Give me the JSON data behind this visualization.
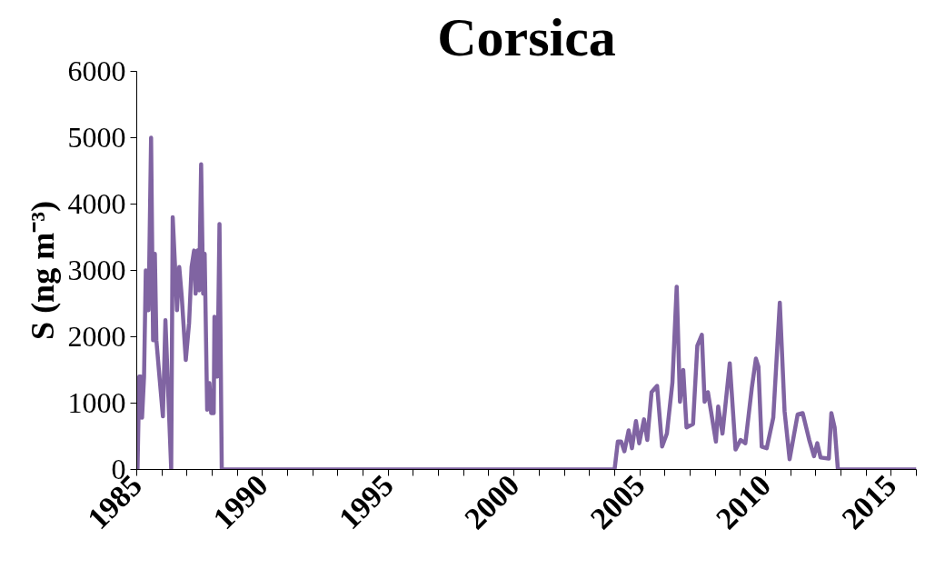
{
  "chart_data": {
    "type": "line",
    "title": "Corsica",
    "ylabel": "S (ng m⁻³)",
    "x": [
      1985.03,
      1985.1,
      1985.16,
      1985.21,
      1985.29,
      1985.36,
      1985.47,
      1985.57,
      1985.65,
      1985.72,
      1985.78,
      1985.88,
      1986.04,
      1986.14,
      1986.37,
      1986.43,
      1986.53,
      1986.6,
      1986.69,
      1986.79,
      1986.95,
      1987.08,
      1987.18,
      1987.28,
      1987.34,
      1987.42,
      1987.48,
      1987.56,
      1987.64,
      1987.7,
      1987.8,
      1987.89,
      1987.96,
      1988.06,
      1988.09,
      1988.21,
      1988.29,
      1988.38,
      2004.0,
      2004.13,
      2004.26,
      2004.39,
      2004.56,
      2004.69,
      2004.85,
      2004.98,
      2005.17,
      2005.3,
      2005.47,
      2005.69,
      2005.89,
      2006.08,
      2006.3,
      2006.47,
      2006.6,
      2006.73,
      2006.86,
      2007.12,
      2007.29,
      2007.47,
      2007.58,
      2007.71,
      2008.03,
      2008.12,
      2008.29,
      2008.58,
      2008.81,
      2009.01,
      2009.2,
      2009.46,
      2009.62,
      2009.72,
      2009.85,
      2010.05,
      2010.31,
      2010.57,
      2010.76,
      2010.96,
      2011.28,
      2011.48,
      2011.74,
      2011.93,
      2012.06,
      2012.19,
      2012.52,
      2012.62,
      2012.75,
      2012.88,
      2016.0
    ],
    "series": [
      {
        "color": "#8064a2",
        "values": [
          0,
          1400,
          1400,
          780,
          1400,
          3000,
          2400,
          5000,
          1950,
          3250,
          1950,
          1500,
          800,
          2250,
          0,
          3800,
          3000,
          2400,
          3050,
          2600,
          1650,
          2200,
          3050,
          3300,
          2650,
          3300,
          2700,
          4600,
          2650,
          3250,
          900,
          1300,
          850,
          850,
          2300,
          1400,
          3700,
          0,
          0,
          420,
          420,
          275,
          590,
          320,
          730,
          395,
          755,
          445,
          1165,
          1260,
          345,
          540,
          1310,
          2755,
          1020,
          1500,
          635,
          685,
          1865,
          2030,
          1020,
          1165,
          420,
          950,
          540,
          1600,
          300,
          445,
          395,
          1240,
          1670,
          1550,
          345,
          320,
          780,
          2515,
          875,
          155,
          830,
          850,
          445,
          200,
          395,
          180,
          165,
          850,
          635,
          0,
          0
        ]
      }
    ],
    "xlim": [
      1985,
      2016
    ],
    "ylim": [
      0,
      6000
    ],
    "xticks": [
      {
        "value": 1985,
        "label": "1985"
      },
      {
        "value": 1986,
        "label": null
      },
      {
        "value": 1987,
        "label": null
      },
      {
        "value": 1988,
        "label": null
      },
      {
        "value": 1989,
        "label": null
      },
      {
        "value": 1990,
        "label": "1990"
      },
      {
        "value": 1991,
        "label": null
      },
      {
        "value": 1992,
        "label": null
      },
      {
        "value": 1993,
        "label": null
      },
      {
        "value": 1994,
        "label": null
      },
      {
        "value": 1995,
        "label": "1995"
      },
      {
        "value": 1996,
        "label": null
      },
      {
        "value": 1997,
        "label": null
      },
      {
        "value": 1998,
        "label": null
      },
      {
        "value": 1999,
        "label": null
      },
      {
        "value": 2000,
        "label": "2000"
      },
      {
        "value": 2001,
        "label": null
      },
      {
        "value": 2002,
        "label": null
      },
      {
        "value": 2003,
        "label": null
      },
      {
        "value": 2004,
        "label": null
      },
      {
        "value": 2005,
        "label": "2005"
      },
      {
        "value": 2006,
        "label": null
      },
      {
        "value": 2007,
        "label": null
      },
      {
        "value": 2008,
        "label": null
      },
      {
        "value": 2009,
        "label": null
      },
      {
        "value": 2010,
        "label": "2010"
      },
      {
        "value": 2011,
        "label": null
      },
      {
        "value": 2012,
        "label": null
      },
      {
        "value": 2013,
        "label": null
      },
      {
        "value": 2014,
        "label": null
      },
      {
        "value": 2015,
        "label": "2015"
      },
      {
        "value": 2016,
        "label": null
      }
    ],
    "yticks": [
      0,
      1000,
      2000,
      3000,
      4000,
      5000,
      6000
    ],
    "grid": false,
    "marker": "none",
    "line_style": "solid"
  }
}
